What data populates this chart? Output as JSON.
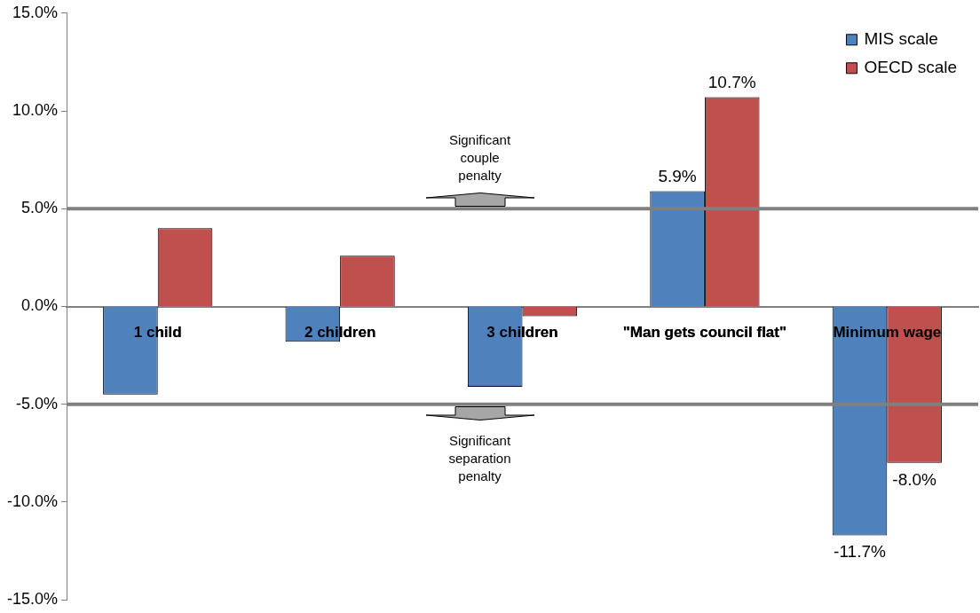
{
  "chart_data": {
    "type": "bar",
    "categories": [
      "1 child",
      "2 children",
      "3 children",
      "\"Man gets council flat\"",
      "Minimum wage"
    ],
    "series": [
      {
        "name": "MIS scale",
        "color": "#4f81bd",
        "values": [
          -4.5,
          -1.8,
          -4.1,
          5.9,
          -11.7
        ],
        "value_labels": [
          null,
          null,
          null,
          "5.9%",
          "-11.7%"
        ]
      },
      {
        "name": "OECD scale",
        "color": "#c0504d",
        "values": [
          4.0,
          2.6,
          -0.5,
          10.7,
          -8.0
        ],
        "value_labels": [
          null,
          null,
          null,
          "10.7%",
          "-8.0%"
        ]
      }
    ],
    "ylim": [
      -15,
      15
    ],
    "yticks": [
      {
        "value": -15,
        "label": "-15.0%"
      },
      {
        "value": -10,
        "label": "-10.0%"
      },
      {
        "value": -5,
        "label": "-5.0%"
      },
      {
        "value": 0,
        "label": "0.0%"
      },
      {
        "value": 5,
        "label": "5.0%"
      },
      {
        "value": 10,
        "label": "10.0%"
      },
      {
        "value": 15,
        "label": "15.0%"
      }
    ],
    "ref_lines": [
      {
        "axis": "y",
        "value": 5,
        "color": "#808080"
      },
      {
        "axis": "y",
        "value": -5,
        "color": "#808080"
      }
    ],
    "annotations": [
      {
        "text": "Significant couple penalty",
        "x": "3 children",
        "y": 5
      },
      {
        "text": "Significant separation penalty",
        "x": "3 children",
        "y": -5
      }
    ],
    "grid": false,
    "legend": "top right"
  }
}
